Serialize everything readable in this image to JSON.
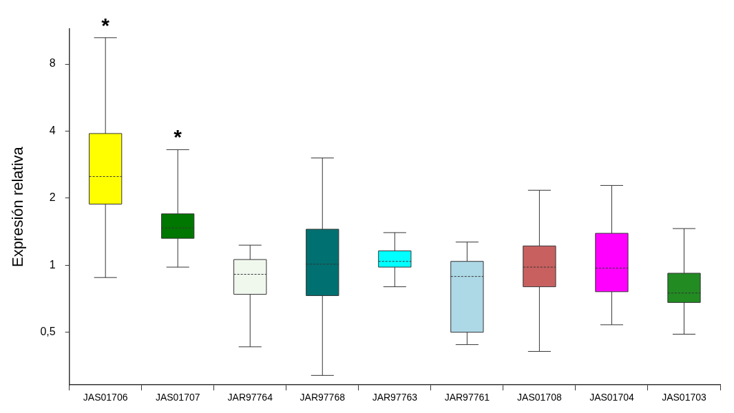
{
  "chart_data": {
    "type": "box",
    "ylabel": "Expresión relativa",
    "categories": [
      "JAS01706",
      "JAS01707",
      "JAR97764",
      "JAR97768",
      "JAR97763",
      "JAR97761",
      "JAS01708",
      "JAS01704",
      "JAS01703"
    ],
    "colors": [
      "#ffff00",
      "#007700",
      "#f0f8ee",
      "#007070",
      "#00ffff",
      "#add8e6",
      "#c86060",
      "#ff00ff",
      "#228b22"
    ],
    "boxes": [
      {
        "low": 0.88,
        "q1": 1.88,
        "median": 2.5,
        "q3": 3.9,
        "high": 10.5
      },
      {
        "low": 0.98,
        "q1": 1.32,
        "median": 1.47,
        "q3": 1.7,
        "high": 3.3
      },
      {
        "low": 0.43,
        "q1": 0.74,
        "median": 0.91,
        "q3": 1.06,
        "high": 1.23
      },
      {
        "low": 0.32,
        "q1": 0.73,
        "median": 1.01,
        "q3": 1.45,
        "high": 3.03
      },
      {
        "low": 0.8,
        "q1": 0.98,
        "median": 1.04,
        "q3": 1.16,
        "high": 1.4
      },
      {
        "low": 0.44,
        "q1": 0.5,
        "median": 0.89,
        "q3": 1.04,
        "high": 1.27
      },
      {
        "low": 0.41,
        "q1": 0.8,
        "median": 0.98,
        "q3": 1.22,
        "high": 2.17
      },
      {
        "low": 0.54,
        "q1": 0.76,
        "median": 0.97,
        "q3": 1.39,
        "high": 2.28
      },
      {
        "low": 0.49,
        "q1": 0.68,
        "median": 0.75,
        "q3": 0.92,
        "high": 1.46
      }
    ],
    "log": true,
    "ylim": [
      0.29,
      11.5
    ],
    "yticks": [
      {
        "value": 0.5,
        "label": "0,5"
      },
      1,
      2,
      4,
      8
    ],
    "grid": false,
    "legend": false,
    "annotations": [
      {
        "text": "*",
        "x": "JAS01706",
        "y": 10.5
      },
      {
        "text": "*",
        "x": "JAS01707",
        "y": 3.3
      }
    ]
  }
}
